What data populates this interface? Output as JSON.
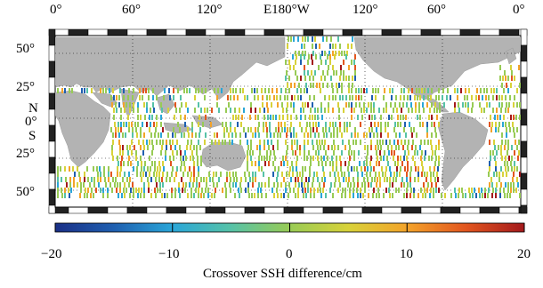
{
  "map": {
    "lon_labels": [
      "0°",
      "60°",
      "120°",
      "E180°W",
      "120°",
      "60°",
      "0°"
    ],
    "lat_labels": [
      "50°",
      "25°",
      "N",
      "0°",
      "S",
      "25°",
      "50°"
    ]
  },
  "colorbar": {
    "ticks": [
      "−20",
      "−10",
      "0",
      "10",
      "20"
    ],
    "label": "Crossover SSH difference/cm",
    "range": [
      -20,
      20
    ],
    "colors": [
      "#1a2f86",
      "#1f5fb0",
      "#2aa6d8",
      "#56c2a7",
      "#98cb55",
      "#d8d23a",
      "#f3a32a",
      "#e2561f",
      "#a3191c"
    ]
  },
  "colors": {
    "land": "#b3b3b3",
    "frame_dark": "#222222"
  }
}
